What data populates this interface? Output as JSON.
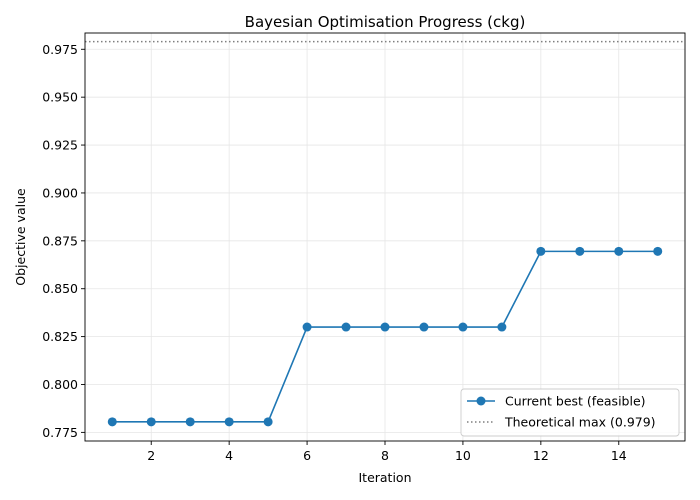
{
  "chart_data": {
    "type": "line",
    "title": "Bayesian Optimisation Progress (ckg)",
    "xlabel": "Iteration",
    "ylabel": "Objective value",
    "xlim": [
      0.3,
      15.7
    ],
    "ylim": [
      0.7705,
      0.9835
    ],
    "xticks": [
      2,
      4,
      6,
      8,
      10,
      12,
      14
    ],
    "yticks": [
      0.775,
      0.8,
      0.825,
      0.85,
      0.875,
      0.9,
      0.925,
      0.95,
      0.975
    ],
    "grid": true,
    "legend_position": "lower-right",
    "series": [
      {
        "name": "Current best (feasible)",
        "color": "#1f77b4",
        "marker": "circle",
        "x": [
          1,
          2,
          3,
          4,
          5,
          6,
          7,
          8,
          9,
          10,
          11,
          12,
          13,
          14,
          15
        ],
        "y": [
          0.7805,
          0.7805,
          0.7805,
          0.7805,
          0.7805,
          0.83,
          0.83,
          0.83,
          0.83,
          0.83,
          0.83,
          0.8695,
          0.8695,
          0.8695,
          0.8695
        ]
      }
    ],
    "reference_lines": [
      {
        "name": "Theoretical max (0.979)",
        "y": 0.979,
        "color": "#7f7f7f",
        "style": "dotted"
      }
    ]
  }
}
